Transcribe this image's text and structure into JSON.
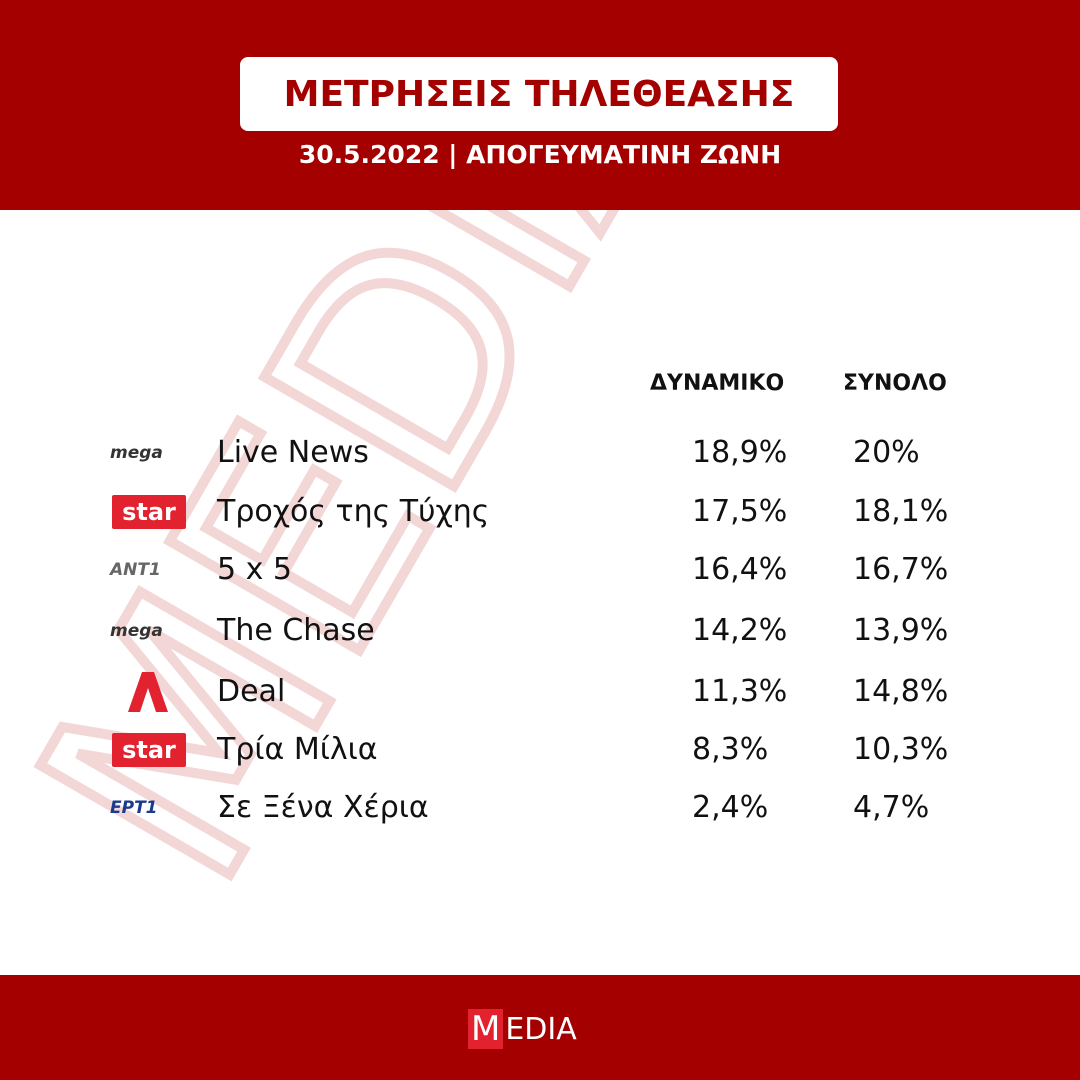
{
  "header": {
    "title": "ΜΕΤΡΗΣΕΙΣ ΤΗΛΕΘΕΑΣΗΣ",
    "subtitle": "30.5.2022 | ΑΠΟΓΕΥΜΑΤΙΝΗ ΖΩΝΗ"
  },
  "watermark": "MEDIA",
  "table": {
    "columns": [
      "ΔΥΝΑΜΙΚΟ",
      "ΣΥΝΟΛΟ"
    ],
    "rows": [
      {
        "logo": {
          "text": "mega",
          "color": "#333333",
          "boxed": false
        },
        "show": "Live News",
        "values": [
          "18,9%",
          "20%"
        ]
      },
      {
        "logo": {
          "text": "star",
          "color": "#e2222e",
          "boxed": true
        },
        "show": "Τροχός της Τύχης",
        "values": [
          "17,5%",
          "18,1%"
        ]
      },
      {
        "logo": {
          "text": "ANT1",
          "color": "#666666",
          "boxed": false
        },
        "show": "5 x 5",
        "values": [
          "16,4%",
          "16,7%"
        ]
      },
      {
        "logo": {
          "text": "mega",
          "color": "#333333",
          "boxed": false
        },
        "show": "The Chase",
        "values": [
          "14,2%",
          "13,9%"
        ]
      },
      {
        "logo": {
          "color": "#e2222e"
        },
        "show": "Deal",
        "values": [
          "11,3%",
          "14,8%"
        ]
      },
      {
        "logo": {
          "text": "star",
          "color": "#e2222e",
          "boxed": true
        },
        "show": "Τρία Μίλια",
        "values": [
          "8,3%",
          "10,3%"
        ]
      },
      {
        "logo": {
          "text": "ΕΡΤ1",
          "color": "#1a3a8c",
          "boxed": false
        },
        "show": "Σε Ξένα Χέρια",
        "values": [
          "2,4%",
          "4,7%"
        ]
      }
    ]
  },
  "footer": {
    "logo": [
      "M",
      "EDIA"
    ]
  }
}
